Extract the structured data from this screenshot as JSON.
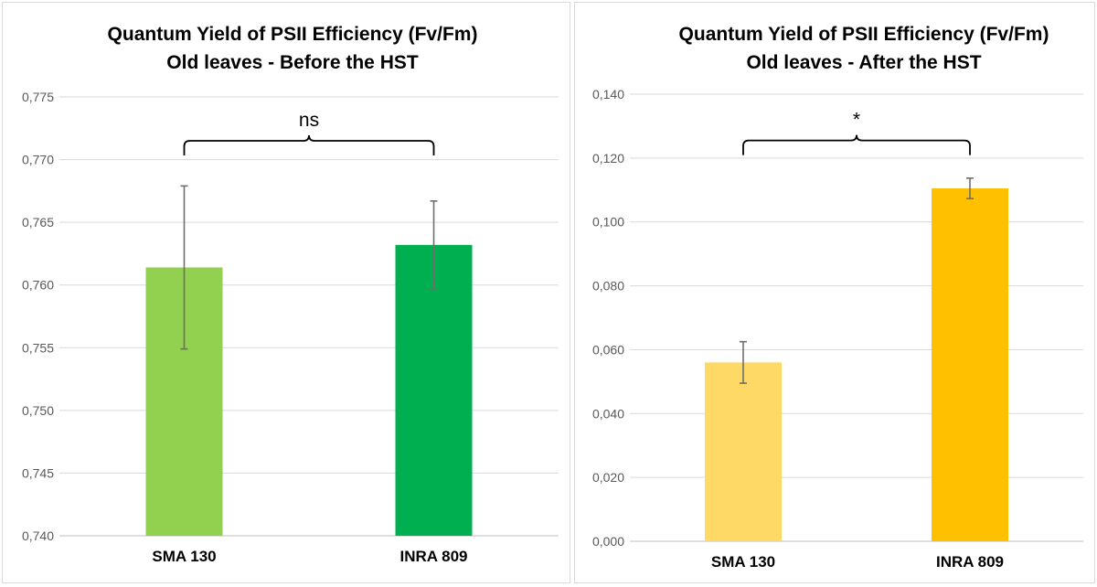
{
  "chart_data": [
    {
      "type": "bar",
      "title": [
        "Quantum Yield of PSII Efficiency (Fv/Fm)",
        "Old leaves - Before the HST"
      ],
      "categories": [
        "SMA 130",
        "INRA 809"
      ],
      "values": [
        0.7614,
        0.7632
      ],
      "error": [
        0.0065,
        0.0035
      ],
      "colors": [
        "#92d050",
        "#00b050"
      ],
      "ylim": [
        0.74,
        0.775
      ],
      "yticks": [
        0.74,
        0.745,
        0.75,
        0.755,
        0.76,
        0.765,
        0.77,
        0.775
      ],
      "ytick_labels": [
        "0,740",
        "0,745",
        "0,750",
        "0,755",
        "0,760",
        "0,765",
        "0,770",
        "0,775"
      ],
      "significance": "ns",
      "significance_y": 0.7715,
      "xlabel": "",
      "ylabel": "",
      "grid": true
    },
    {
      "type": "bar",
      "title": [
        "Quantum Yield of PSII Efficiency (Fv/Fm)",
        "Old leaves - After the HST"
      ],
      "categories": [
        "SMA 130",
        "INRA 809"
      ],
      "values": [
        0.056,
        0.1105
      ],
      "error": [
        0.0065,
        0.0032
      ],
      "colors": [
        "#ffd966",
        "#ffc000"
      ],
      "ylim": [
        0,
        0.14
      ],
      "yticks": [
        0,
        0.02,
        0.04,
        0.06,
        0.08,
        0.1,
        0.12,
        0.14
      ],
      "ytick_labels": [
        "0,000",
        "0,020",
        "0,040",
        "0,060",
        "0,080",
        "0,100",
        "0,120",
        "0,140"
      ],
      "significance": "*",
      "significance_y": 0.1255,
      "xlabel": "",
      "ylabel": "",
      "grid": true
    }
  ]
}
